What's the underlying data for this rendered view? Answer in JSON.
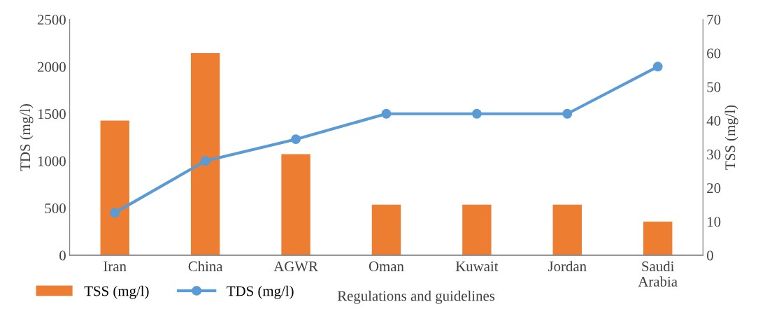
{
  "chart_data": {
    "type": "bar",
    "xlabel": "Regulations and guidelines",
    "ylabel": "TDS (mg/l)",
    "y2label": "TSS (mg/l)",
    "categories": [
      "Iran",
      "China",
      "AGWR",
      "Oman",
      "Kuwait",
      "Jordan",
      "Saudi\nArabia"
    ],
    "series": [
      {
        "name": "TSS (mg/l)",
        "axis": "y2",
        "color": "#ed7d31",
        "values": [
          40,
          60,
          30,
          15,
          15,
          15,
          10
        ]
      },
      {
        "name": "TDS (mg/l)",
        "type": "line",
        "axis": "y",
        "color": "#5b9bd5",
        "marker": "circle",
        "values": [
          450,
          1000,
          1230,
          1500,
          1500,
          1500,
          2000
        ]
      }
    ],
    "ylim": [
      0,
      2500
    ],
    "yticks": [
      0,
      500,
      1000,
      1500,
      2000,
      2500
    ],
    "y2lim": [
      0,
      70
    ],
    "y2ticks": [
      0,
      10,
      20,
      30,
      40,
      50,
      60,
      70
    ],
    "grid": false,
    "legend": "bottom left"
  }
}
